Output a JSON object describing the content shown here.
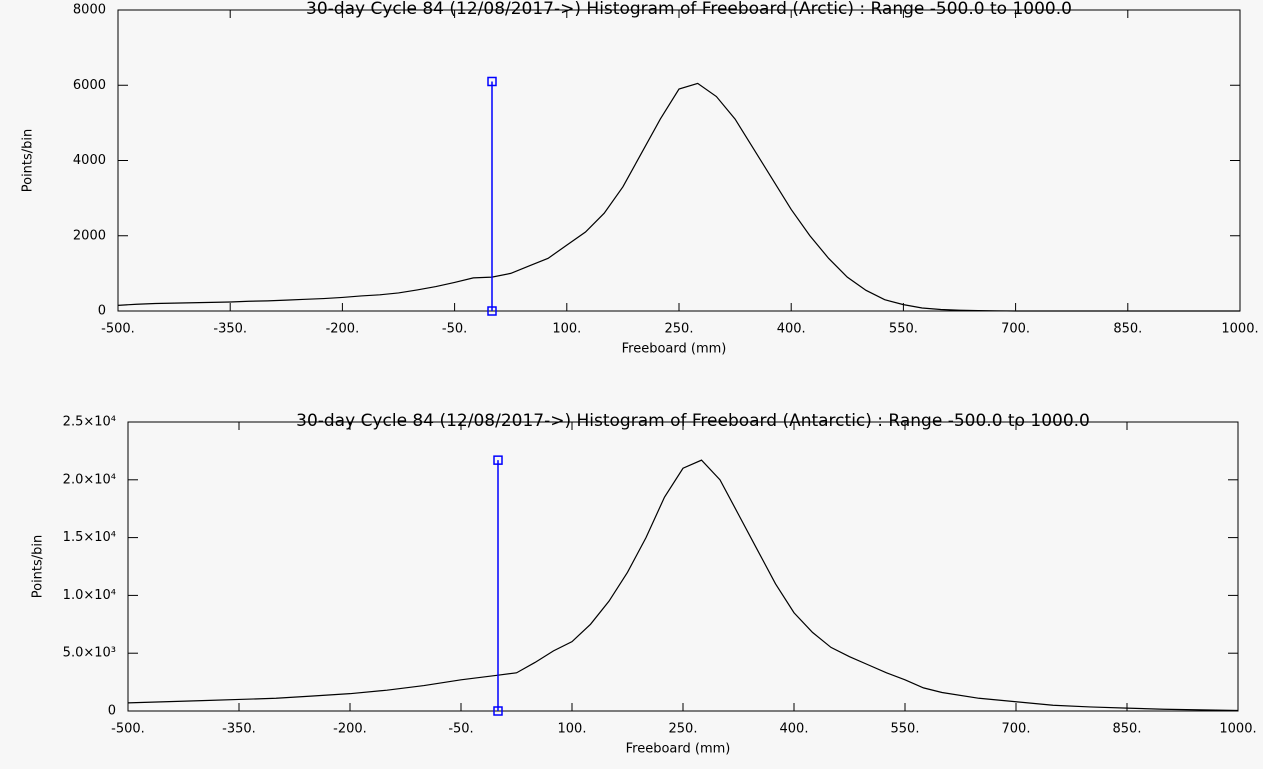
{
  "chart_data": [
    {
      "type": "line",
      "title": "30-day Cycle 84 (12/08/2017->) Histogram of Freeboard (Arctic) :  Range -500.0 to 1000.0",
      "xlabel": "Freeboard (mm)",
      "ylabel": "Points/bin",
      "color": "#000000",
      "x": [
        -500,
        -475,
        -450,
        -425,
        -400,
        -375,
        -350,
        -325,
        -300,
        -275,
        -250,
        -225,
        -200,
        -175,
        -150,
        -125,
        -100,
        -75,
        -50,
        -25,
        0,
        25,
        50,
        75,
        100,
        125,
        150,
        175,
        200,
        225,
        250,
        275,
        300,
        325,
        350,
        375,
        400,
        425,
        450,
        475,
        500,
        525,
        550,
        575,
        600,
        625,
        650,
        675,
        700,
        750,
        800,
        850,
        900,
        950,
        1000
      ],
      "values": [
        150,
        180,
        200,
        210,
        220,
        230,
        240,
        260,
        270,
        290,
        310,
        330,
        360,
        400,
        430,
        480,
        560,
        650,
        760,
        880,
        900,
        1000,
        1200,
        1400,
        1750,
        2100,
        2600,
        3300,
        4200,
        5100,
        5900,
        6050,
        5700,
        5100,
        4300,
        3500,
        2700,
        2000,
        1400,
        900,
        550,
        300,
        170,
        80,
        40,
        20,
        10,
        5,
        0,
        0,
        0,
        0,
        0,
        0,
        0
      ],
      "markers": {
        "x": [
          0,
          0
        ],
        "y": [
          0,
          6100
        ],
        "color": "#0000ff"
      },
      "xlim": [
        -500,
        1000
      ],
      "ylim": [
        0,
        8000
      ],
      "xticks": [
        {
          "value": -500,
          "label": "-500."
        },
        {
          "value": -350,
          "label": "-350."
        },
        {
          "value": -200,
          "label": "-200."
        },
        {
          "value": -50,
          "label": "-50."
        },
        {
          "value": 100,
          "label": "100."
        },
        {
          "value": 250,
          "label": "250."
        },
        {
          "value": 400,
          "label": "400."
        },
        {
          "value": 550,
          "label": "550."
        },
        {
          "value": 700,
          "label": "700."
        },
        {
          "value": 850,
          "label": "850."
        },
        {
          "value": 1000,
          "label": "1000."
        }
      ],
      "yticks": [
        0,
        2000,
        4000,
        6000,
        8000
      ]
    },
    {
      "type": "line",
      "title": "30-day Cycle 84 (12/08/2017->) Histogram of Freeboard (Antarctic) :  Range -500.0 to 1000.0",
      "xlabel": "Freeboard (mm)",
      "ylabel": "Points/bin",
      "color": "#000000",
      "x": [
        -500,
        -450,
        -400,
        -350,
        -300,
        -250,
        -200,
        -150,
        -100,
        -50,
        0,
        25,
        50,
        75,
        100,
        125,
        150,
        175,
        200,
        225,
        250,
        275,
        300,
        325,
        350,
        375,
        400,
        425,
        450,
        475,
        500,
        525,
        550,
        575,
        600,
        650,
        700,
        750,
        800,
        850,
        900,
        950,
        1000
      ],
      "values": [
        700,
        800,
        900,
        1000,
        1100,
        1300,
        1500,
        1800,
        2200,
        2700,
        3100,
        3300,
        4200,
        5200,
        6000,
        7500,
        9500,
        12000,
        15000,
        18500,
        21000,
        21700,
        20000,
        17000,
        14000,
        11000,
        8500,
        6800,
        5500,
        4700,
        4000,
        3300,
        2700,
        2000,
        1600,
        1100,
        800,
        500,
        350,
        250,
        150,
        100,
        50
      ],
      "markers": {
        "x": [
          0,
          0
        ],
        "y": [
          0,
          21700
        ],
        "color": "#0000ff"
      },
      "xlim": [
        -500,
        1000
      ],
      "ylim": [
        0,
        25000
      ],
      "xticks": [
        {
          "value": -500,
          "label": "-500."
        },
        {
          "value": -350,
          "label": "-350."
        },
        {
          "value": -200,
          "label": "-200."
        },
        {
          "value": -50,
          "label": "-50."
        },
        {
          "value": 100,
          "label": "100."
        },
        {
          "value": 250,
          "label": "250."
        },
        {
          "value": 400,
          "label": "400."
        },
        {
          "value": 550,
          "label": "550."
        },
        {
          "value": 700,
          "label": "700."
        },
        {
          "value": 850,
          "label": "850."
        },
        {
          "value": 1000,
          "label": "1000."
        }
      ],
      "yticks": [
        0,
        {
          "value": 5000,
          "label": "5.0×10³"
        },
        {
          "value": 10000,
          "label": "1.0×10⁴"
        },
        {
          "value": 15000,
          "label": "1.5×10⁴"
        },
        {
          "value": 20000,
          "label": "2.0×10⁴"
        },
        {
          "value": 25000,
          "label": "2.5×10⁴"
        }
      ]
    }
  ]
}
